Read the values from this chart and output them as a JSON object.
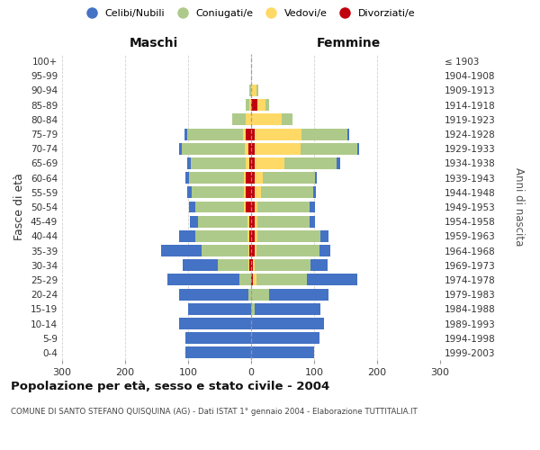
{
  "age_groups": [
    "0-4",
    "5-9",
    "10-14",
    "15-19",
    "20-24",
    "25-29",
    "30-34",
    "35-39",
    "40-44",
    "45-49",
    "50-54",
    "55-59",
    "60-64",
    "65-69",
    "70-74",
    "75-79",
    "80-84",
    "85-89",
    "90-94",
    "95-99",
    "100+"
  ],
  "birth_years": [
    "1999-2003",
    "1994-1998",
    "1989-1993",
    "1984-1988",
    "1979-1983",
    "1974-1978",
    "1969-1973",
    "1964-1968",
    "1959-1963",
    "1954-1958",
    "1949-1953",
    "1944-1948",
    "1939-1943",
    "1934-1938",
    "1929-1933",
    "1924-1928",
    "1919-1923",
    "1914-1918",
    "1909-1913",
    "1904-1908",
    "≤ 1903"
  ],
  "males": {
    "celibi": [
      105,
      105,
      115,
      100,
      110,
      115,
      55,
      65,
      25,
      13,
      10,
      8,
      5,
      5,
      5,
      5,
      0,
      0,
      0,
      0,
      0
    ],
    "coniugati": [
      0,
      0,
      0,
      0,
      5,
      18,
      48,
      73,
      83,
      78,
      78,
      83,
      88,
      88,
      100,
      88,
      22,
      5,
      3,
      0,
      0
    ],
    "vedovi": [
      0,
      0,
      0,
      0,
      0,
      0,
      2,
      2,
      3,
      3,
      3,
      3,
      3,
      5,
      5,
      5,
      8,
      3,
      0,
      0,
      0
    ],
    "divorziati": [
      0,
      0,
      0,
      0,
      0,
      0,
      3,
      3,
      3,
      3,
      8,
      8,
      8,
      3,
      5,
      8,
      0,
      0,
      0,
      0,
      0
    ]
  },
  "females": {
    "nubili": [
      100,
      108,
      115,
      105,
      95,
      80,
      28,
      18,
      13,
      8,
      8,
      5,
      3,
      5,
      3,
      3,
      0,
      0,
      0,
      0,
      0
    ],
    "coniugate": [
      0,
      0,
      0,
      5,
      28,
      80,
      88,
      100,
      100,
      83,
      83,
      83,
      83,
      83,
      90,
      73,
      18,
      5,
      3,
      0,
      0
    ],
    "vedove": [
      0,
      0,
      0,
      0,
      0,
      5,
      3,
      3,
      5,
      5,
      5,
      10,
      13,
      48,
      73,
      75,
      48,
      13,
      8,
      2,
      0
    ],
    "divorziate": [
      0,
      0,
      0,
      0,
      0,
      3,
      3,
      5,
      5,
      5,
      5,
      5,
      5,
      5,
      5,
      5,
      0,
      10,
      0,
      0,
      0
    ]
  },
  "colors": {
    "celibi_nubili": "#4472C4",
    "coniugati": "#AECA8A",
    "vedovi": "#FFD966",
    "divorziati": "#C0000C"
  },
  "xlim": 300,
  "title": "Popolazione per età, sesso e stato civile - 2004",
  "subtitle": "COMUNE DI SANTO STEFANO QUISQUINA (AG) - Dati ISTAT 1° gennaio 2004 - Elaborazione TUTTITALIA.IT",
  "ylabel": "Fasce di età",
  "right_ylabel": "Anni di nascita",
  "legend_items": [
    "Celibi/Nubili",
    "Coniugati/e",
    "Vedovi/e",
    "Divorziati/e"
  ],
  "maschi_label": "Maschi",
  "femmine_label": "Femmine",
  "bg_color": "#FFFFFF",
  "grid_color": "#CCCCCC",
  "xticks": [
    -300,
    -200,
    -100,
    0,
    100,
    200,
    300
  ]
}
